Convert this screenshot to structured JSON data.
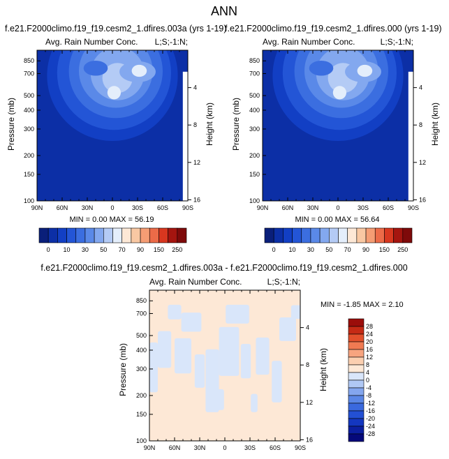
{
  "title": "ANN",
  "colors": {
    "abs": [
      "#0a1f7a",
      "#0c2fa6",
      "#123fc4",
      "#2355d6",
      "#3b6ee0",
      "#5a89e8",
      "#83a8ef",
      "#b4cbf5",
      "#e4eefb",
      "#fde8d6",
      "#f9c8a3",
      "#f59d74",
      "#ec6b48",
      "#d8371f",
      "#a5150f",
      "#7e0a0a"
    ],
    "diff": [
      "#05097a",
      "#0c1fa0",
      "#1437c0",
      "#2350d4",
      "#3a69de",
      "#5b87e6",
      "#84a6ee",
      "#b0c8f4",
      "#d9e6fa",
      "#fde8d6",
      "#fbcfb0",
      "#f7a47f",
      "#f07a52",
      "#e2502c",
      "#c52a15",
      "#9b0d0a"
    ],
    "abs_contour_levels": [
      "#0c2fa6",
      "#123fc4",
      "#2355d6",
      "#3b6ee0",
      "#5a89e8",
      "#83a8ef",
      "#b4cbf5",
      "#e4eefb"
    ]
  },
  "panels": [
    {
      "run_title": "f.e21.F2000climo.f19_f19.cesm2_1.dfires.003a (yrs 1-19)",
      "var_name": "Avg. Rain Number Conc.",
      "corner_label": "L;S;-1:N;",
      "ylabel": "Pressure (mb)",
      "y2label": "Height (km)",
      "stats": "MIN =  0.00  MAX = 56.19"
    },
    {
      "run_title": "f.e21.F2000climo.f19_f19.cesm2_1.dfires.000 (yrs 1-19)",
      "var_name": "Avg. Rain Number Conc.",
      "corner_label": "L;S;-1:N;",
      "ylabel": "Pressure (mb)",
      "y2label": "Height (km)",
      "stats": "MIN =  0.00  MAX = 56.64"
    },
    {
      "run_title": "f.e21.F2000climo.f19_f19.cesm2_1.dfires.003a - f.e21.F2000climo.f19_f19.cesm2_1.dfires.000",
      "var_name": "Avg. Rain Number Conc.",
      "corner_label": "L;S;-1:N;",
      "ylabel": "Pressure (mb)",
      "y2label": "Height (km)",
      "stats": "MIN = -1.85  MAX =  2.10"
    }
  ],
  "abs_colorbar_labels": [
    "0",
    "10",
    "30",
    "50",
    "70",
    "90",
    "150",
    "250"
  ],
  "diff_colorbar_labels": [
    "28",
    "24",
    "20",
    "16",
    "12",
    "8",
    "4",
    "0",
    "-4",
    "-8",
    "-12",
    "-16",
    "-20",
    "-24",
    "-28"
  ],
  "chart_data": [
    {
      "type": "heatmap",
      "title": "Avg. Rain Number Conc.",
      "ylabel": "Pressure (mb)",
      "y2label": "Height (km)",
      "x_ticks": [
        "90N",
        "60N",
        "30N",
        "0",
        "30S",
        "60S",
        "90S"
      ],
      "y_ticks": [
        "100",
        "150",
        "200",
        "300",
        "400",
        "500",
        "700",
        "850"
      ],
      "y2_ticks": [
        "16",
        "12",
        "8",
        "4"
      ],
      "xlim": [
        90,
        -90
      ],
      "ylim": [
        1000,
        100
      ],
      "ylog": true,
      "min": 0.0,
      "max": 56.19
    },
    {
      "type": "heatmap",
      "title": "Avg. Rain Number Conc.",
      "ylabel": "Pressure (mb)",
      "y2label": "Height (km)",
      "x_ticks": [
        "90N",
        "60N",
        "30N",
        "0",
        "30S",
        "60S",
        "90S"
      ],
      "y_ticks": [
        "100",
        "150",
        "200",
        "300",
        "400",
        "500",
        "700",
        "850"
      ],
      "y2_ticks": [
        "16",
        "12",
        "8",
        "4"
      ],
      "xlim": [
        90,
        -90
      ],
      "ylim": [
        1000,
        100
      ],
      "ylog": true,
      "min": 0.0,
      "max": 56.64
    },
    {
      "type": "heatmap",
      "title": "Avg. Rain Number Conc.",
      "ylabel": "Pressure (mb)",
      "y2label": "Height (km)",
      "x_ticks": [
        "90N",
        "60N",
        "30N",
        "0",
        "30S",
        "60S",
        "90S"
      ],
      "y_ticks": [
        "100",
        "150",
        "200",
        "300",
        "400",
        "500",
        "700",
        "850"
      ],
      "y2_ticks": [
        "16",
        "12",
        "8",
        "4"
      ],
      "xlim": [
        90,
        -90
      ],
      "ylim": [
        1000,
        100
      ],
      "ylog": true,
      "min": -1.85,
      "max": 2.1
    }
  ]
}
